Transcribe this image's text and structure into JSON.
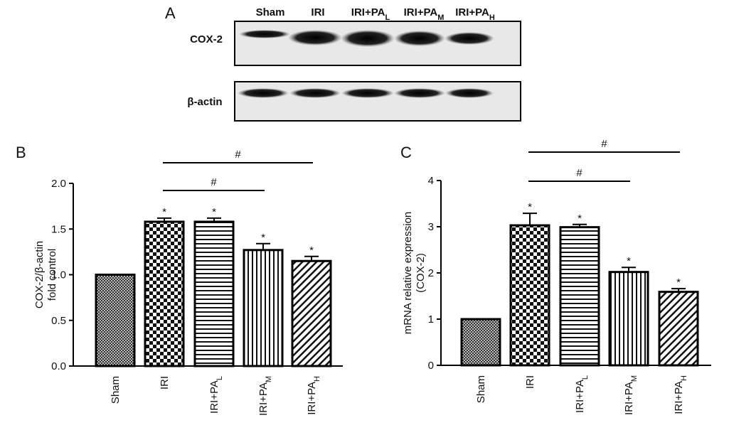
{
  "blot": {
    "panel_label": "A",
    "lanes": [
      "Sham",
      "IRI",
      "IRI+PAL",
      "IRI+PAM",
      "IRI+PAH"
    ],
    "rows": [
      "COX-2",
      "β-actin"
    ]
  },
  "chart_data": [
    {
      "type": "bar",
      "panel_label": "B",
      "ylabel": [
        "COX-2/β-actin",
        "fold control"
      ],
      "categories": [
        "Sham",
        "IRI",
        "IRI+PAL",
        "IRI+PAM",
        "IRI+PAH"
      ],
      "values": [
        1.0,
        1.58,
        1.58,
        1.27,
        1.15
      ],
      "errors": [
        0,
        0.04,
        0.04,
        0.07,
        0.05
      ],
      "stars": [
        null,
        "*",
        "*",
        "*",
        "*"
      ],
      "brackets": [
        {
          "from": 1,
          "to": 3,
          "label": "#"
        },
        {
          "from": 1,
          "to": 4,
          "label": "#"
        }
      ],
      "ylim": [
        0,
        2
      ],
      "yticks": [
        {
          "value": 0,
          "label": "0.0"
        },
        0.5,
        {
          "value": 1,
          "label": "1.0"
        },
        1.5,
        {
          "value": 2,
          "label": "2.0"
        }
      ]
    },
    {
      "type": "bar",
      "panel_label": "C",
      "ylabel": [
        "mRNA relative expression",
        "(COX-2)"
      ],
      "categories": [
        "Sham",
        "IRI",
        "IRI+PAL",
        "IRI+PAM",
        "IRI+PAH"
      ],
      "values": [
        1.0,
        3.03,
        2.99,
        2.02,
        1.59
      ],
      "errors": [
        0,
        0.26,
        0.06,
        0.1,
        0.07
      ],
      "stars": [
        null,
        "*",
        "*",
        "*",
        "*"
      ],
      "brackets": [
        {
          "from": 1,
          "to": 3,
          "label": "#"
        },
        {
          "from": 1,
          "to": 4,
          "label": "#"
        }
      ],
      "ylim": [
        0,
        4
      ],
      "yticks": [
        0,
        1,
        2,
        3,
        4
      ]
    }
  ]
}
